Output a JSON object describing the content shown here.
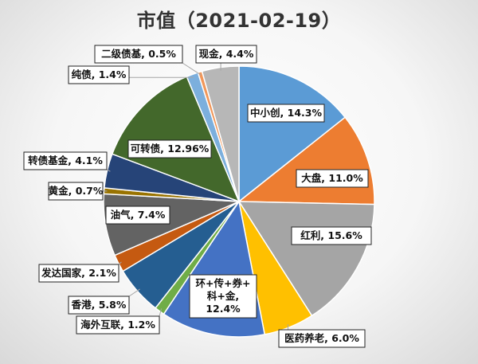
{
  "chart_data": {
    "type": "pie",
    "title": "市值（2021-02-19）",
    "slices": [
      {
        "label": "中小创",
        "value": 14.3,
        "display": "中小创, 14.3%",
        "color": "#5b9bd5"
      },
      {
        "label": "大盘",
        "value": 11.0,
        "display": "大盘, 11.0%",
        "color": "#ed7d31"
      },
      {
        "label": "红利",
        "value": 15.6,
        "display": "红利, 15.6%",
        "color": "#a5a5a5"
      },
      {
        "label": "医药养老",
        "value": 6.0,
        "display": "医药养老, 6.0%",
        "color": "#ffc000"
      },
      {
        "label": "环+传+券+科+金",
        "value": 12.4,
        "display": "环+传+券+科+金, 12.4%",
        "color": "#4472c4"
      },
      {
        "label": "海外互联",
        "value": 1.2,
        "display": "海外互联, 1.2%",
        "color": "#70ad47"
      },
      {
        "label": "香港",
        "value": 5.8,
        "display": "香港, 5.8%",
        "color": "#255e91"
      },
      {
        "label": "发达国家",
        "value": 2.1,
        "display": "发达国家, 2.1%",
        "color": "#c55a11"
      },
      {
        "label": "油气",
        "value": 7.4,
        "display": "油气, 7.4%",
        "color": "#636363"
      },
      {
        "label": "黄金",
        "value": 0.7,
        "display": "黄金, 0.7%",
        "color": "#997300"
      },
      {
        "label": "转债基金",
        "value": 4.1,
        "display": "转债基金, 4.1%",
        "color": "#264478"
      },
      {
        "label": "可转债",
        "value": 12.96,
        "display": "可转债, 12.96%",
        "color": "#43682b"
      },
      {
        "label": "纯债",
        "value": 1.4,
        "display": "纯债, 1.4%",
        "color": "#7cafdd"
      },
      {
        "label": "二级债基",
        "value": 0.5,
        "display": "二级债基, 0.5%",
        "color": "#f1975a"
      },
      {
        "label": "现金",
        "value": 4.4,
        "display": "现金, 4.4%",
        "color": "#b7b7b7"
      }
    ]
  }
}
